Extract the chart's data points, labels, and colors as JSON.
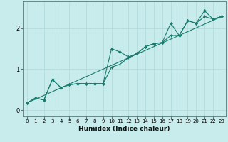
{
  "xlabel": "Humidex (Indice chaleur)",
  "bg_color": "#c8ecec",
  "line_color": "#1a7a6e",
  "grid_color": "#b0d8d8",
  "xlim": [
    -0.5,
    23.5
  ],
  "ylim": [
    -0.15,
    2.65
  ],
  "yticks": [
    0,
    1,
    2
  ],
  "xticks": [
    0,
    1,
    2,
    3,
    4,
    5,
    6,
    7,
    8,
    9,
    10,
    11,
    12,
    13,
    14,
    15,
    16,
    17,
    18,
    19,
    20,
    21,
    22,
    23
  ],
  "series1_x": [
    0,
    1,
    2,
    3,
    4,
    5,
    6,
    7,
    8,
    9,
    10,
    11,
    12,
    13,
    14,
    15,
    16,
    17,
    18,
    19,
    20,
    21,
    22,
    23
  ],
  "series1_y": [
    0.18,
    0.3,
    0.25,
    0.75,
    0.55,
    0.62,
    0.65,
    0.65,
    0.65,
    0.65,
    1.5,
    1.42,
    1.3,
    1.38,
    1.55,
    1.62,
    1.65,
    2.12,
    1.82,
    2.18,
    2.12,
    2.42,
    2.22,
    2.28
  ],
  "series2_x": [
    0,
    1,
    2,
    3,
    4,
    5,
    6,
    7,
    8,
    9,
    10,
    11,
    12,
    13,
    14,
    15,
    16,
    17,
    18,
    19,
    20,
    21,
    22,
    23
  ],
  "series2_y": [
    0.18,
    0.3,
    0.25,
    0.75,
    0.55,
    0.62,
    0.65,
    0.65,
    0.65,
    0.65,
    1.05,
    1.12,
    1.28,
    1.38,
    1.55,
    1.62,
    1.65,
    1.82,
    1.82,
    2.18,
    2.12,
    2.28,
    2.22,
    2.28
  ],
  "series3_x": [
    0,
    23
  ],
  "series3_y": [
    0.18,
    2.28
  ]
}
